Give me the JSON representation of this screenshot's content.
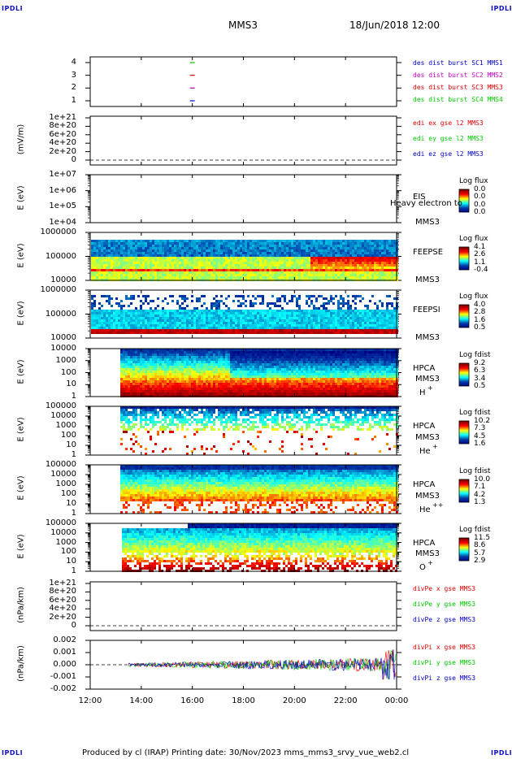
{
  "corner_label": "IPDLI",
  "header": {
    "spacecraft": "MMS3",
    "datetime": "18/Jun/2018 12:00"
  },
  "footer": "Produced by cl (IRAP)   Printing date: 30/Nov/2023   mms_mms3_srvy_vue_web2.cl",
  "colors": {
    "cyan": "#00c8ff",
    "blue": "#0000c8",
    "green": "#00c800",
    "red": "#e00000",
    "magenta": "#c000c0"
  },
  "chart_data": [
    {
      "type": "line",
      "panel": "des-dist-burst",
      "xlim": [
        "12:00",
        "00:00"
      ],
      "ylim": [
        0.5,
        4.5
      ],
      "y_ticks": [
        "4",
        "3",
        "2",
        "1"
      ],
      "legend": [
        {
          "label": "des dist burst SC1 MMS1",
          "color": "#0000c8"
        },
        {
          "label": "des dist burst SC2 MMS2",
          "color": "#c000c0"
        },
        {
          "label": "des dist burst SC3 MMS3",
          "color": "#e00000"
        },
        {
          "label": "des dist burst SC4 MMS4",
          "color": "#00c800"
        }
      ],
      "series": [
        {
          "x": [
            "16:00"
          ],
          "values": [
            4
          ],
          "color": "#00c800"
        },
        {
          "x": [
            "16:00"
          ],
          "values": [
            3
          ],
          "color": "#e00000"
        },
        {
          "x": [
            "16:00"
          ],
          "values": [
            2
          ],
          "color": "#c000c0"
        },
        {
          "x": [
            "16:00"
          ],
          "values": [
            1
          ],
          "color": "#0000c8"
        }
      ]
    },
    {
      "type": "line",
      "panel": "edi-e",
      "ylabel": "(mV/m)",
      "y_ticks": [
        "1e+21",
        "8e+20",
        "6e+20",
        "4e+20",
        "2e+20",
        "0"
      ],
      "ylim": [
        0,
        1e+21
      ],
      "legend": [
        {
          "label": "edi ex gse l2 MMS3",
          "color": "#e00000"
        },
        {
          "label": "edi ey gse l2 MMS3",
          "color": "#00c800"
        },
        {
          "label": "edi ez gse l2 MMS3",
          "color": "#0000c8"
        }
      ]
    },
    {
      "type": "heatmap",
      "panel": "eis",
      "ylabel": "E (eV)",
      "y_ticks": [
        "1e+07",
        "1e+06",
        "1e+05",
        "1e+04"
      ],
      "inst": [
        "EIS",
        "MMS3"
      ],
      "overlay": "Heavy electron to",
      "cb_title": "Log flux",
      "cb_values": [
        "0.0",
        "0.0",
        "0.0",
        "0.0"
      ]
    },
    {
      "type": "heatmap",
      "panel": "feeps-e",
      "ylabel": "E (eV)",
      "y_ticks": [
        "1000000",
        "100000",
        "10000"
      ],
      "inst": [
        "FEEPSE",
        "MMS3"
      ],
      "cb_title": "Log flux",
      "cb_values": [
        "4.1",
        "2.6",
        "1.1",
        "-0.4"
      ]
    },
    {
      "type": "heatmap",
      "panel": "feeps-i",
      "ylabel": "E (eV)",
      "y_ticks": [
        "1000000",
        "100000",
        "10000"
      ],
      "inst": [
        "FEEPSI",
        "MMS3"
      ],
      "cb_title": "Log flux",
      "cb_values": [
        "4.0",
        "2.8",
        "1.6",
        "0.5"
      ]
    },
    {
      "type": "heatmap",
      "panel": "hpca-h",
      "ylabel": "E (eV)",
      "y_ticks": [
        "10000",
        "1000",
        "100",
        "10",
        "1"
      ],
      "inst": [
        "HPCA",
        "MMS3"
      ],
      "species": "H",
      "charge": "+",
      "cb_title": "Log fdist",
      "cb_values": [
        "9.2",
        "6.3",
        "3.4",
        "0.5"
      ]
    },
    {
      "type": "heatmap",
      "panel": "hpca-he",
      "ylabel": "E (eV)",
      "y_ticks": [
        "100000",
        "10000",
        "1000",
        "100",
        "10",
        "1"
      ],
      "inst": [
        "HPCA",
        "MMS3"
      ],
      "species": "He",
      "charge": "+",
      "cb_title": "Log fdist",
      "cb_values": [
        "10.2",
        "7.3",
        "4.5",
        "1.6"
      ]
    },
    {
      "type": "heatmap",
      "panel": "hpca-hepp",
      "ylabel": "E (eV)",
      "y_ticks": [
        "100000",
        "10000",
        "1000",
        "100",
        "10",
        "1"
      ],
      "inst": [
        "HPCA",
        "MMS3"
      ],
      "species": "He",
      "charge": "++",
      "cb_title": "Log fdist",
      "cb_values": [
        "10.0",
        "7.1",
        "4.2",
        "1.3"
      ]
    },
    {
      "type": "heatmap",
      "panel": "hpca-o",
      "ylabel": "E (eV)",
      "y_ticks": [
        "100000",
        "10000",
        "1000",
        "100",
        "10",
        "1"
      ],
      "inst": [
        "HPCA",
        "MMS3"
      ],
      "species": "O",
      "charge": "+",
      "cb_title": "Log fdist",
      "cb_values": [
        "11.5",
        "8.6",
        "5.7",
        "2.9"
      ]
    },
    {
      "type": "line",
      "panel": "divpe",
      "ylabel": "(nPa/km)",
      "y_ticks": [
        "1e+21",
        "8e+20",
        "6e+20",
        "4e+20",
        "2e+20",
        "0"
      ],
      "ylim": [
        0,
        1e+21
      ],
      "legend": [
        {
          "label": "divPe x gse MMS3",
          "color": "#e00000"
        },
        {
          "label": "divPe y gse MMS3",
          "color": "#00c800"
        },
        {
          "label": "divPe z gse MMS3",
          "color": "#0000c8"
        }
      ]
    },
    {
      "type": "line",
      "panel": "divpi",
      "ylabel": "(nPa/km)",
      "y_ticks": [
        "0.002",
        "0.001",
        "0.000",
        "-0.001",
        "-0.002"
      ],
      "ylim": [
        -0.002,
        0.002
      ],
      "legend": [
        {
          "label": "divPi x gse MMS3",
          "color": "#e00000"
        },
        {
          "label": "divPi y gse MMS3",
          "color": "#00c800"
        },
        {
          "label": "divPi z gse MMS3",
          "color": "#0000c8"
        }
      ]
    }
  ],
  "x_ticks": [
    "12:00",
    "14:00",
    "16:00",
    "18:00",
    "20:00",
    "22:00",
    "00:00"
  ]
}
